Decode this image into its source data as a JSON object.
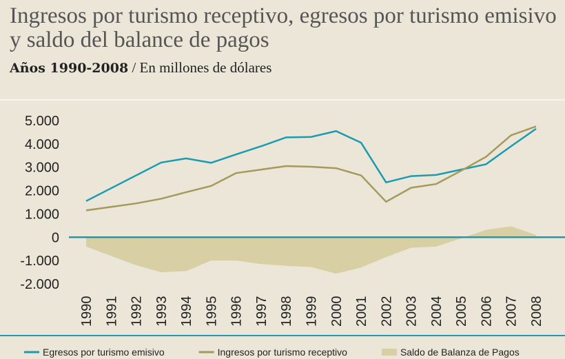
{
  "chart_data": {
    "type": "line",
    "title": "Ingresos por turismo receptivo, egresos por turismo emisivo y saldo del balance de pagos",
    "subtitle_bold": "Años 1990-2008",
    "subtitle": "/ En millones de dólares",
    "categories": [
      "1990",
      "1991",
      "1992",
      "1993",
      "1994",
      "1995",
      "1996",
      "1997",
      "1998",
      "1999",
      "2000",
      "2001",
      "2002",
      "2003",
      "2004",
      "2005",
      "2006",
      "2007",
      "2008"
    ],
    "series": [
      {
        "name": "Egresos por turismo emisivo",
        "color": "#1a9bb0",
        "kind": "line",
        "values": [
          1550,
          2100,
          2650,
          3200,
          3380,
          3190,
          3550,
          3900,
          4280,
          4300,
          4550,
          4050,
          2350,
          2620,
          2670,
          2900,
          3130,
          3900,
          4650
        ]
      },
      {
        "name": "Ingresos por turismo receptivo",
        "color": "#a39a5c",
        "kind": "line",
        "values": [
          1150,
          1300,
          1450,
          1650,
          1930,
          2200,
          2750,
          2900,
          3050,
          3020,
          2960,
          2650,
          1520,
          2120,
          2280,
          2850,
          3450,
          4370,
          4750
        ]
      },
      {
        "name": "Saldo de Balanza de Pagos",
        "color": "#d8cfa5",
        "kind": "area",
        "values": [
          -400,
          -800,
          -1200,
          -1500,
          -1450,
          -1000,
          -1000,
          -1150,
          -1230,
          -1280,
          -1560,
          -1300,
          -850,
          -450,
          -400,
          -50,
          320,
          470,
          100
        ]
      }
    ],
    "ylim": [
      -2000,
      5000
    ],
    "yticks": [
      {
        "value": -2000,
        "label": "-2.000"
      },
      {
        "value": -1000,
        "label": "-1.000"
      },
      0,
      {
        "value": 1000,
        "label": "1.000"
      },
      {
        "value": 2000,
        "label": "2.000"
      },
      {
        "value": 3000,
        "label": "3.000"
      },
      {
        "value": 4000,
        "label": "4.000"
      },
      {
        "value": 5000,
        "label": "5.000"
      }
    ]
  }
}
